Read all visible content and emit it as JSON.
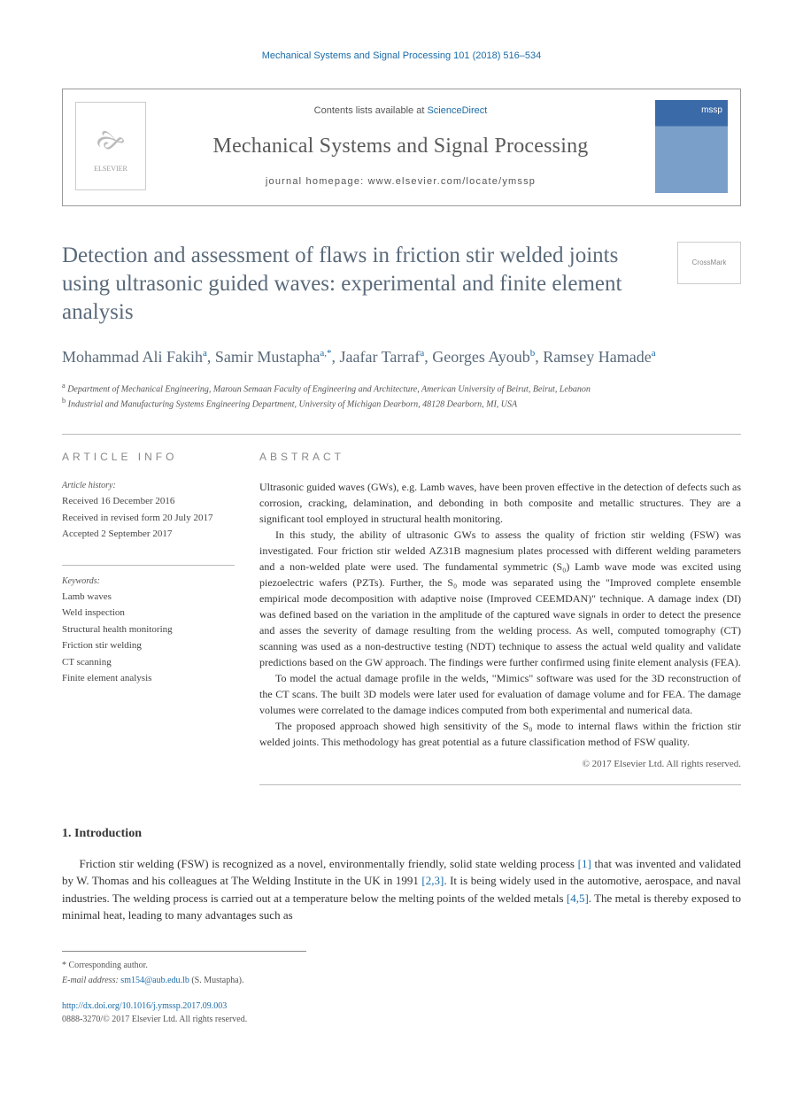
{
  "page_header": "Mechanical Systems and Signal Processing 101 (2018) 516–534",
  "masthead": {
    "contents_prefix": "Contents lists available at ",
    "contents_link": "ScienceDirect",
    "journal_name": "Mechanical Systems and Signal Processing",
    "homepage_prefix": "journal homepage: ",
    "homepage_url": "www.elsevier.com/locate/ymssp",
    "publisher_logo_label": "ELSEVIER",
    "cover_abbr": "mssp"
  },
  "crossmark_label": "CrossMark",
  "title": "Detection and assessment of flaws in friction stir welded joints using ultrasonic guided waves: experimental and finite element analysis",
  "authors_html": [
    {
      "name": "Mohammad Ali Fakih",
      "sup": "a"
    },
    {
      "name": "Samir Mustapha",
      "sup": "a,*"
    },
    {
      "name": "Jaafar Tarraf",
      "sup": "a"
    },
    {
      "name": "Georges Ayoub",
      "sup": "b"
    },
    {
      "name": "Ramsey Hamade",
      "sup": "a"
    }
  ],
  "affiliations": [
    {
      "sup": "a",
      "text": "Department of Mechanical Engineering, Maroun Semaan Faculty of Engineering and Architecture, American University of Beirut, Beirut, Lebanon"
    },
    {
      "sup": "b",
      "text": "Industrial and Manufacturing Systems Engineering Department, University of Michigan Dearborn, 48128 Dearborn, MI, USA"
    }
  ],
  "info": {
    "article_info_head": "ARTICLE INFO",
    "abstract_head": "ABSTRACT",
    "history_label": "Article history:",
    "history": [
      "Received 16 December 2016",
      "Received in revised form 20 July 2017",
      "Accepted 2 September 2017"
    ],
    "keywords_label": "Keywords:",
    "keywords": [
      "Lamb waves",
      "Weld inspection",
      "Structural health monitoring",
      "Friction stir welding",
      "CT scanning",
      "Finite element analysis"
    ]
  },
  "abstract": {
    "p1": "Ultrasonic guided waves (GWs), e.g. Lamb waves, have been proven effective in the detection of defects such as corrosion, cracking, delamination, and debonding in both composite and metallic structures. They are a significant tool employed in structural health monitoring.",
    "p2": "In this study, the ability of ultrasonic GWs to assess the quality of friction stir welding (FSW) was investigated. Four friction stir welded AZ31B magnesium plates processed with different welding parameters and a non-welded plate were used. The fundamental symmetric (S₀) Lamb wave mode was excited using piezoelectric wafers (PZTs). Further, the S₀ mode was separated using the \"Improved complete ensemble empirical mode decomposition with adaptive noise (Improved CEEMDAN)\" technique. A damage index (DI) was defined based on the variation in the amplitude of the captured wave signals in order to detect the presence and asses the severity of damage resulting from the welding process. As well, computed tomography (CT) scanning was used as a non-destructive testing (NDT) technique to assess the actual weld quality and validate predictions based on the GW approach. The findings were further confirmed using finite element analysis (FEA).",
    "p3": "To model the actual damage profile in the welds, \"Mimics\" software was used for the 3D reconstruction of the CT scans. The built 3D models were later used for evaluation of damage volume and for FEA. The damage volumes were correlated to the damage indices computed from both experimental and numerical data.",
    "p4": "The proposed approach showed high sensitivity of the S₀ mode to internal flaws within the friction stir welded joints. This methodology has great potential as a future classification method of FSW quality.",
    "copyright": "© 2017 Elsevier Ltd. All rights reserved."
  },
  "sections": {
    "intro_heading": "1. Introduction",
    "intro_p1_a": "Friction stir welding (FSW) is recognized as a novel, environmentally friendly, solid state welding process ",
    "intro_ref1": "[1]",
    "intro_p1_b": " that was invented and validated by W. Thomas and his colleagues at The Welding Institute in the UK in 1991 ",
    "intro_ref2": "[2,3]",
    "intro_p1_c": ". It is being widely used in the automotive, aerospace, and naval industries. The welding process is carried out at a temperature below the melting points of the welded metals ",
    "intro_ref3": "[4,5]",
    "intro_p1_d": ". The metal is thereby exposed to minimal heat, leading to many advantages such as"
  },
  "footnotes": {
    "corr_label": "* Corresponding author.",
    "email_label": "E-mail address: ",
    "email": "sm154@aub.edu.lb",
    "email_person": " (S. Mustapha)."
  },
  "footer": {
    "doi": "http://dx.doi.org/10.1016/j.ymssp.2017.09.003",
    "issn_line": "0888-3270/© 2017 Elsevier Ltd. All rights reserved."
  },
  "colors": {
    "link": "#1a6ba8",
    "title_gray": "#5a6a7a",
    "rule": "#bbbbbb"
  }
}
